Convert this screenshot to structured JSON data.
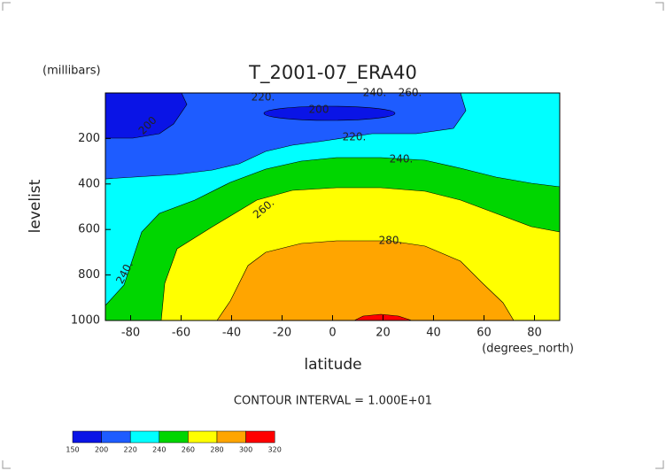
{
  "chart_data": {
    "type": "contour",
    "title": "T_2001-07_ERA40",
    "y_units": "(millibars)",
    "y_label": "levelist",
    "x_label": "latitude",
    "x_units": "(degrees_north)",
    "footnote": "CONTOUR INTERVAL = 1.000E+01",
    "xlim": [
      -90,
      90
    ],
    "xticks": [
      -80,
      -60,
      -40,
      -20,
      0,
      20,
      40,
      60,
      80
    ],
    "ylim": [
      1000,
      0
    ],
    "yticks": [
      200,
      400,
      600,
      800,
      1000
    ],
    "levels": [
      150,
      200,
      220,
      240,
      260,
      280,
      300,
      320
    ],
    "colors": [
      "#0a14e6",
      "#1e5cff",
      "#00ffff",
      "#00d600",
      "#ffff00",
      "#ffa500",
      "#ff0000"
    ],
    "contour_labels": [
      {
        "value": 220,
        "label": "220."
      },
      {
        "value": 240,
        "label": "240."
      },
      {
        "value": 260,
        "label": "260."
      },
      200,
      {
        "value": 220,
        "label": "220."
      },
      {
        "value": 240,
        "label": "240."
      },
      {
        "value": 260,
        "label": "260."
      },
      {
        "value": 280,
        "label": "280."
      },
      {
        "value": 240,
        "label": "240."
      },
      200
    ]
  }
}
